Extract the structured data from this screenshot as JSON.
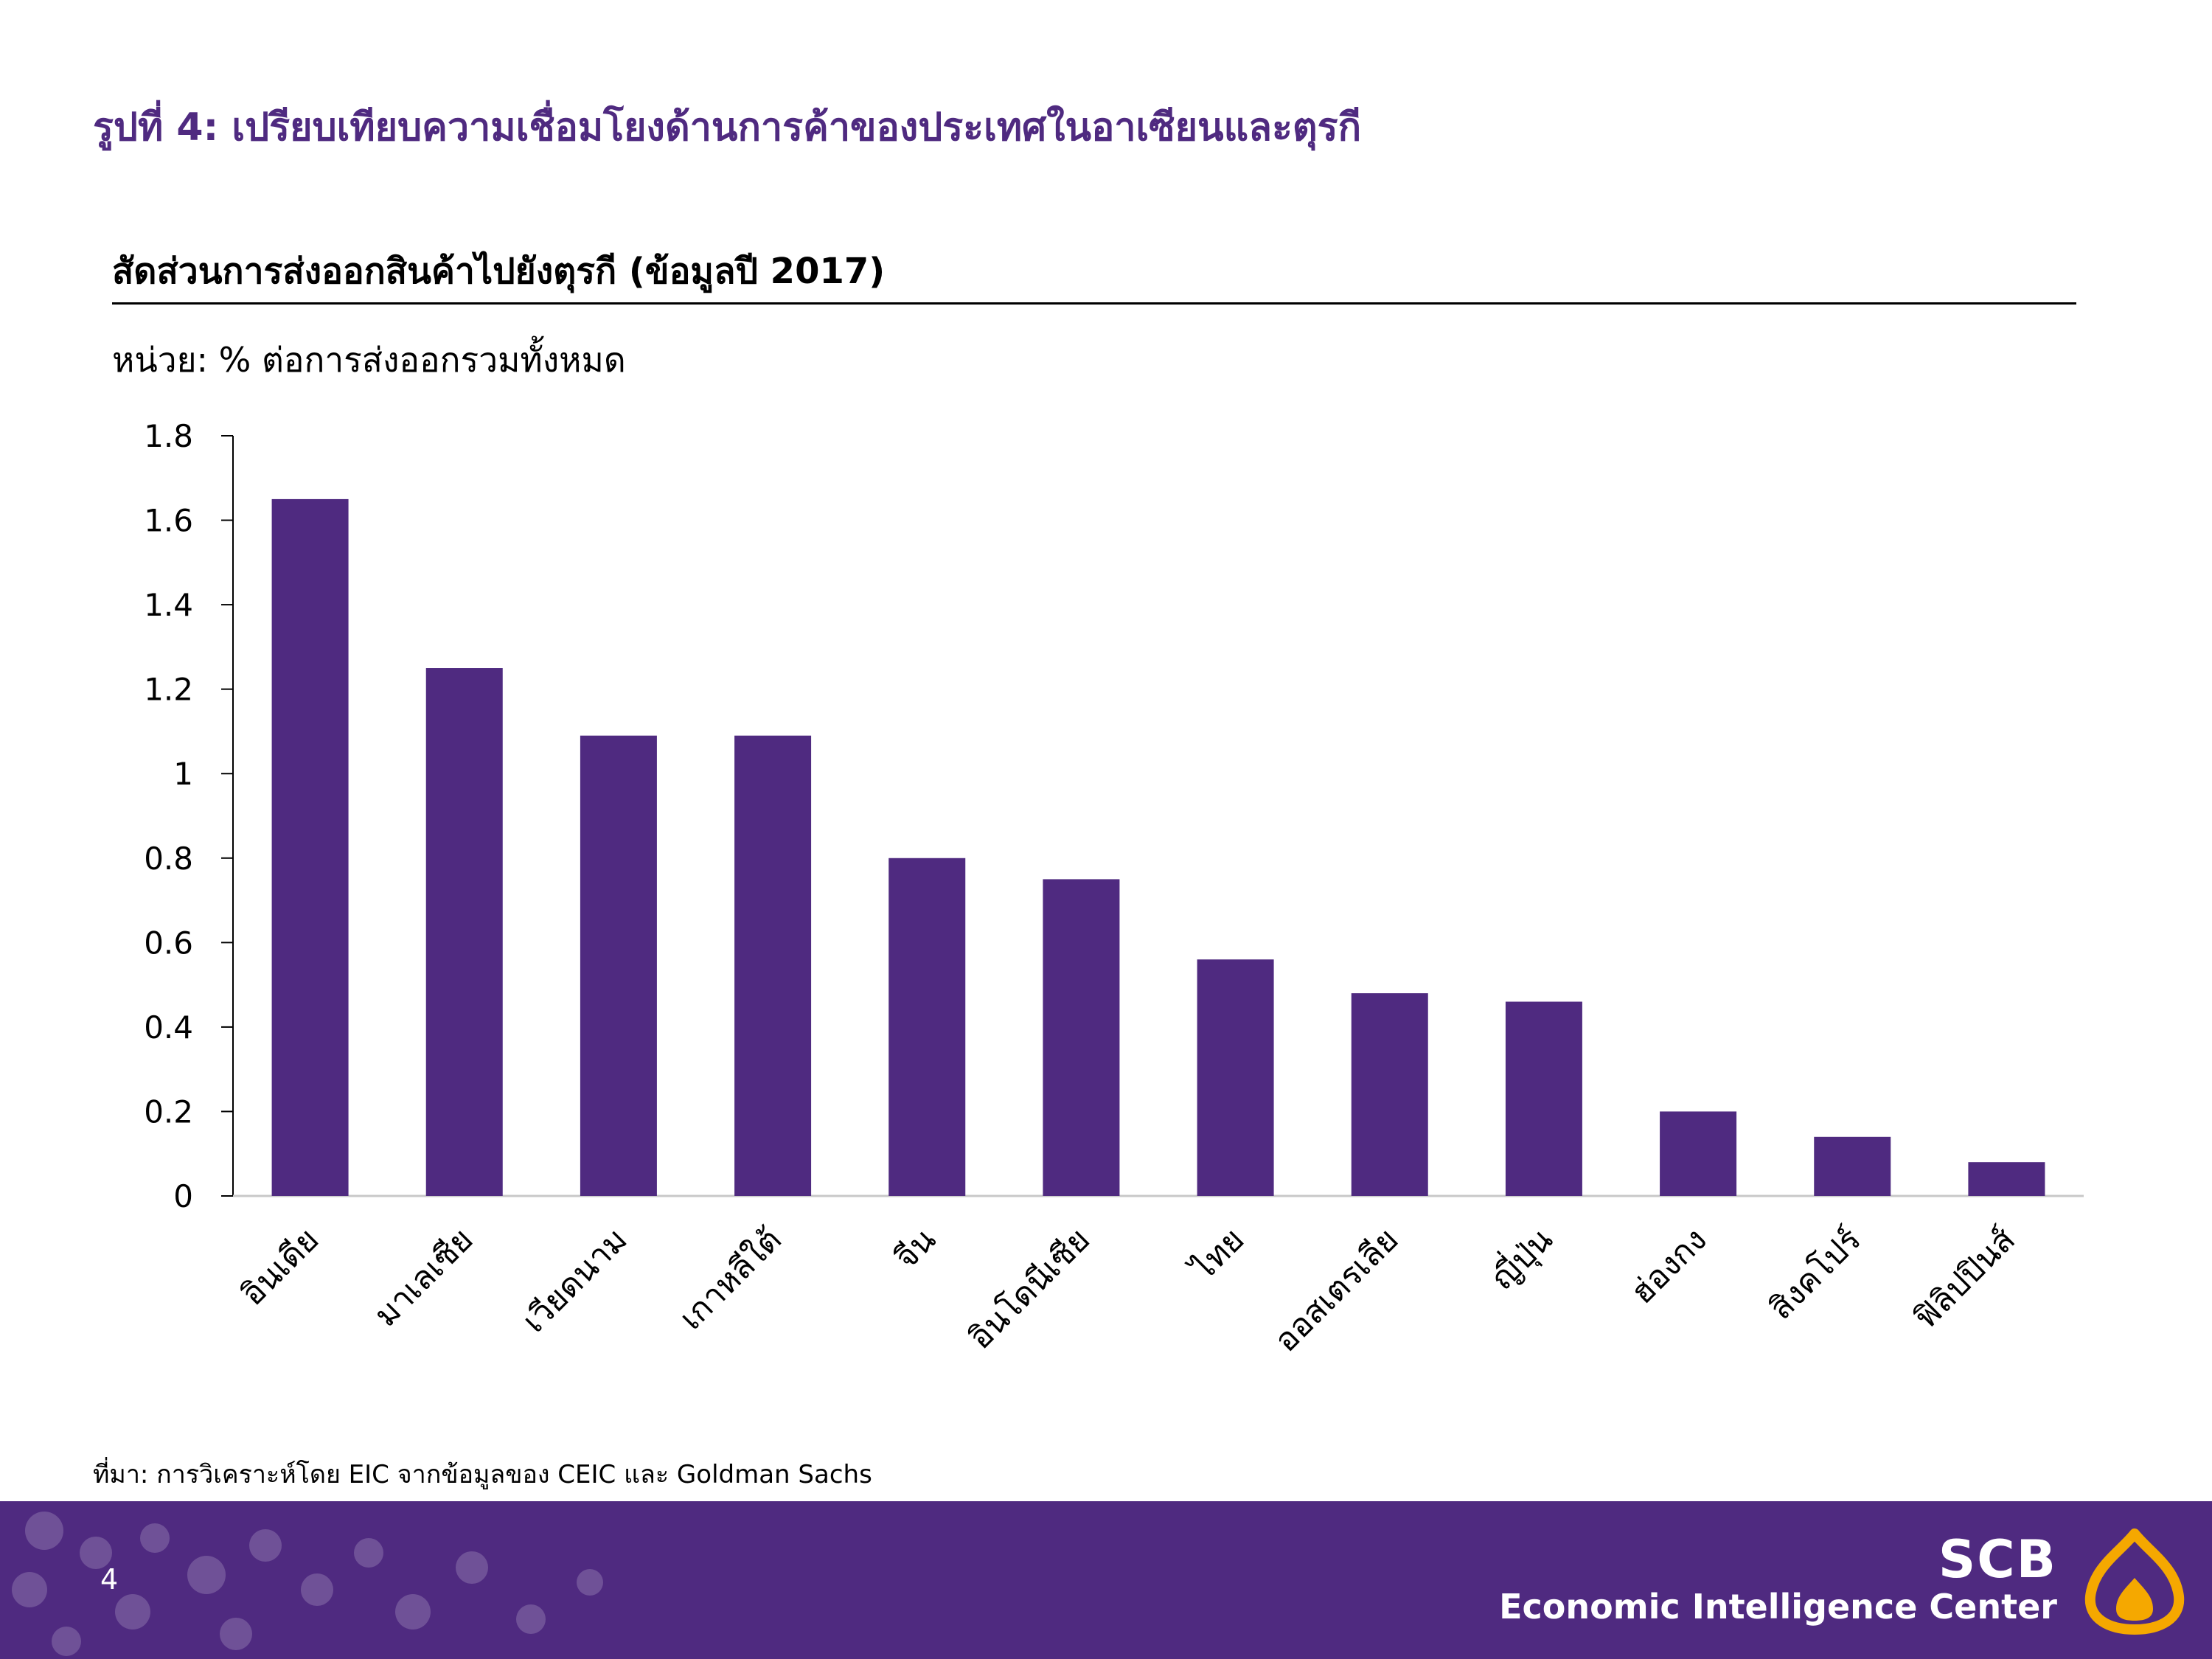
{
  "figure_title": "รูปที่ 4: เปรียบเทียบความเชื่อมโยงด้านการค้าของประเทศในอาเซียนและตุรกี",
  "chart_data": {
    "type": "bar",
    "title": "สัดส่วนการส่งออกสินค้าไปยังตุรกี (ข้อมูลปี 2017)",
    "ylabel": "หน่วย: % ต่อการส่งออกรวมทั้งหมด",
    "xlabel": "",
    "categories": [
      "อินเดีย",
      "มาเลเซีย",
      "เวียดนาม",
      "เกาหลีใต้",
      "จีน",
      "อินโดนีเซีย",
      "ไทย",
      "ออสเตรเลีย",
      "ญี่ปุ่น",
      "ฮ่องกง",
      "สิงคโปร์",
      "ฟิลิปปินส์"
    ],
    "values": [
      1.65,
      1.25,
      1.09,
      1.09,
      0.8,
      0.75,
      0.56,
      0.48,
      0.46,
      0.2,
      0.14,
      0.08
    ],
    "ylim": [
      0,
      1.8
    ],
    "yticks": [
      "0",
      "0.2",
      "0.4",
      "0.6",
      "0.8",
      "1",
      "1.2",
      "1.4",
      "1.6",
      "1.8"
    ],
    "bar_color": "#4f2a80",
    "grid": false,
    "legend": "none"
  },
  "source": "ที่มา: การวิเคราะห์โดย EIC จากข้อมูลของ CEIC และ Goldman Sachs",
  "footer": {
    "page_number": "4",
    "brand": "SCB",
    "brand_subtitle": "Economic Intelligence Center",
    "background_color": "#4f2a80"
  }
}
